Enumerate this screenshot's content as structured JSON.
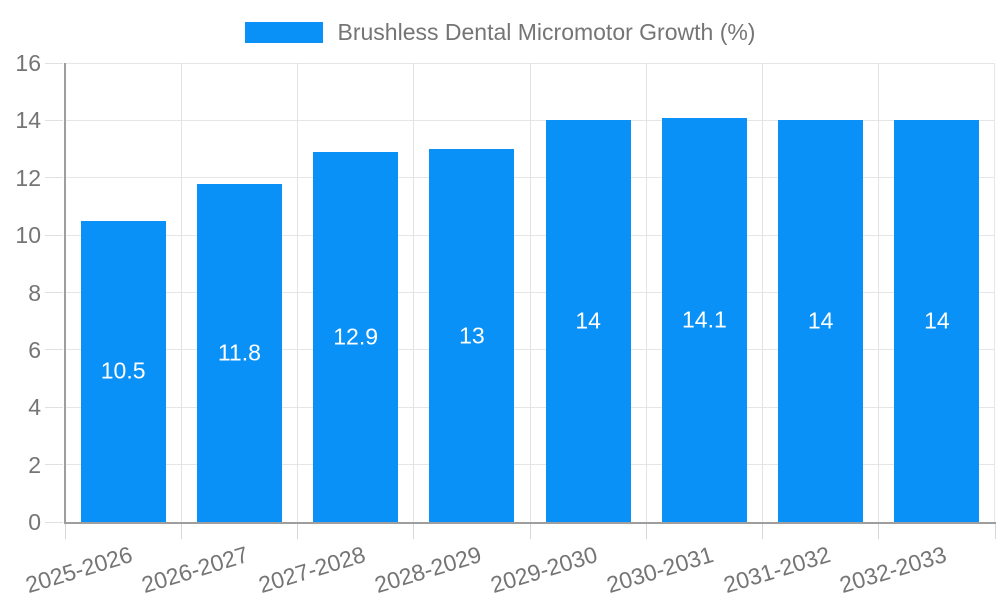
{
  "legend": {
    "label": "Brushless Dental Micromotor Growth (%)"
  },
  "chart_data": {
    "type": "bar",
    "title": "Brushless Dental Micromotor Growth (%)",
    "series_name": "Brushless Dental Micromotor Growth (%)",
    "categories": [
      "2025-2026",
      "2026-2027",
      "2027-2028",
      "2028-2029",
      "2029-2030",
      "2030-2031",
      "2031-2032",
      "2032-2033"
    ],
    "values": [
      10.5,
      11.8,
      12.9,
      13,
      14,
      14.1,
      14,
      14
    ],
    "value_labels": [
      "10.5",
      "11.8",
      "12.9",
      "13",
      "14",
      "14.1",
      "14",
      "14"
    ],
    "xlabel": "",
    "ylabel": "",
    "ylim": [
      0,
      16
    ],
    "yticks": [
      0,
      2,
      4,
      6,
      8,
      10,
      12,
      14,
      16
    ],
    "grid": true,
    "legend_position": "top",
    "bar_color": "#0a91f7",
    "value_label_color": "#ffffff",
    "axis_line_color": "#9e9e9e",
    "grid_color": "#e6e6e6",
    "tick_text_color": "#757575"
  }
}
